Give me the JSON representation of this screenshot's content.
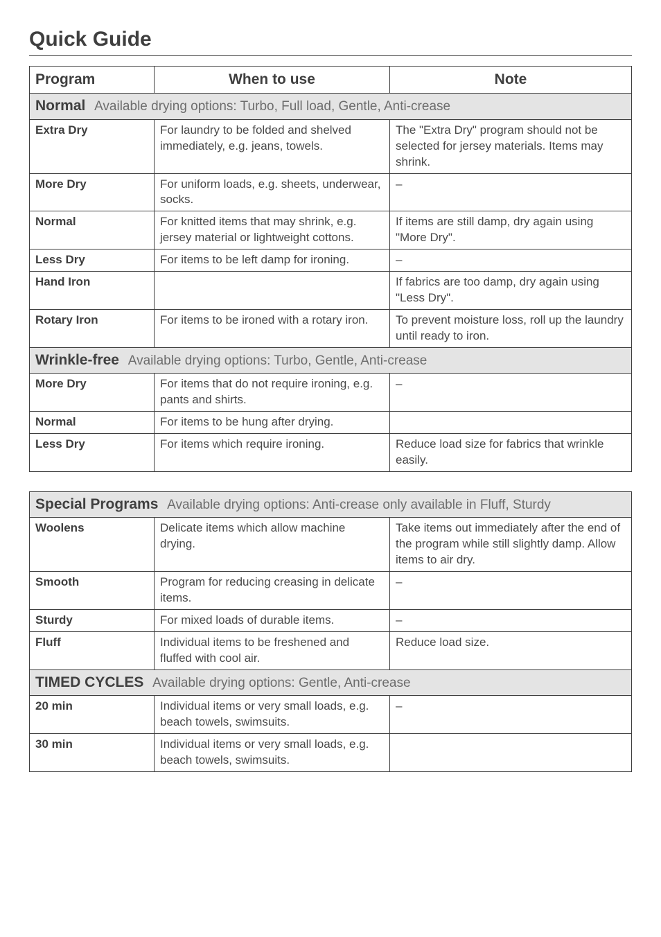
{
  "page_title": "Quick Guide",
  "colors": {
    "text": "#4a4a4a",
    "heading": "#3f3f3f",
    "border": "#3f3f3f",
    "section_bg": "#e4e4e4",
    "section_opts": "#6d6d6d",
    "page_bg": "#ffffff"
  },
  "font_sizes_pt": {
    "page_title": 23,
    "section_title": 16,
    "section_opts": 14,
    "header": 16,
    "body": 13
  },
  "table1": {
    "headers": {
      "program": "Program",
      "when_to_use": "When to use",
      "note": "Note"
    },
    "sections": [
      {
        "title": "Normal",
        "options": "Available drying options: Turbo, Full load, Gentle, Anti-crease",
        "rows": [
          {
            "program": "Extra Dry",
            "use": "For laundry to be folded and shelved immediately, e.g. jeans, towels.",
            "note": "The \"Extra Dry\" program should not be selected for jersey materials.\nItems may shrink."
          },
          {
            "program": "More Dry",
            "use": "For uniform loads, e.g. sheets, underwear, socks.",
            "note": "–"
          },
          {
            "program": "Normal",
            "use": "For knitted items that may shrink, e.g. jersey material or lightweight cottons.",
            "note": "If items are still damp, dry again using \"More Dry\"."
          },
          {
            "program": "Less Dry",
            "use": "For items to be left damp for ironing.",
            "note": "–"
          },
          {
            "program": "Hand Iron",
            "use": "",
            "note": "If fabrics are too damp, dry again using \"Less Dry\"."
          },
          {
            "program": "Rotary Iron",
            "use": "For items to be ironed with a rotary iron.",
            "note": "To prevent moisture loss, roll up the laundry until ready to iron."
          }
        ]
      },
      {
        "title": "Wrinkle-free",
        "options": "Available drying options: Turbo, Gentle, Anti-crease",
        "rows": [
          {
            "program": "More Dry",
            "use": "For items that do not require ironing, e.g. pants and shirts.",
            "note": "–"
          },
          {
            "program": "Normal",
            "use": "For items to be hung after drying.",
            "note": ""
          },
          {
            "program": "Less Dry",
            "use": "For items which require ironing.",
            "note": "Reduce load size for fabrics that wrinkle easily."
          }
        ]
      }
    ]
  },
  "table2": {
    "sections": [
      {
        "title": "Special Programs",
        "options": "Available drying options: Anti-crease only available in Fluff, Sturdy",
        "rows": [
          {
            "program": "Woolens",
            "use": "Delicate items which allow machine drying.",
            "note": "Take items out immediately after the end of the program while still slightly damp. Allow items to air dry."
          },
          {
            "program": "Smooth",
            "use": "Program for reducing creasing in delicate items.",
            "note": "–"
          },
          {
            "program": "Sturdy",
            "use": "For mixed loads of durable items.",
            "note": "–"
          },
          {
            "program": "Fluff",
            "use": "Individual items to be freshened and fluffed with cool air.",
            "note": "Reduce load size."
          }
        ]
      },
      {
        "title": "TIMED CYCLES",
        "options": "Available drying options: Gentle, Anti-crease",
        "rows": [
          {
            "program": "20 min",
            "use": "Individual items or very small loads, e.g. beach towels, swimsuits.",
            "note": "–"
          },
          {
            "program": "30 min",
            "use": "Individual items or very small loads, e.g. beach towels, swimsuits.",
            "note": ""
          }
        ]
      }
    ]
  }
}
